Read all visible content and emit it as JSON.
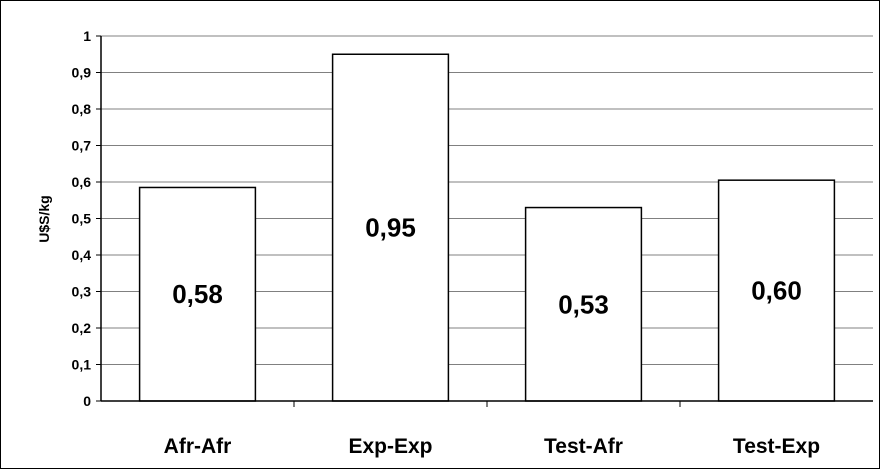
{
  "chart_data": {
    "type": "bar",
    "title": "",
    "xlabel": "",
    "ylabel": "U$S/kg",
    "ylim": [
      0,
      1
    ],
    "y_ticks": [
      "0",
      "0,1",
      "0,2",
      "0,3",
      "0,4",
      "0,5",
      "0,6",
      "0,7",
      "0,8",
      "0,9",
      "1"
    ],
    "categories": [
      "Afr-Afr",
      "Exp-Exp",
      "Test-Afr",
      "Test-Exp"
    ],
    "values": [
      0.585,
      0.95,
      0.53,
      0.605
    ],
    "data_labels": [
      "0,58",
      "0,95",
      "0,53",
      "0,60"
    ],
    "grid": true,
    "legend": "none",
    "colors": {
      "bar_fill": "#ffffff",
      "bar_stroke": "#000000",
      "grid": "#808080",
      "axis": "#000000"
    }
  }
}
